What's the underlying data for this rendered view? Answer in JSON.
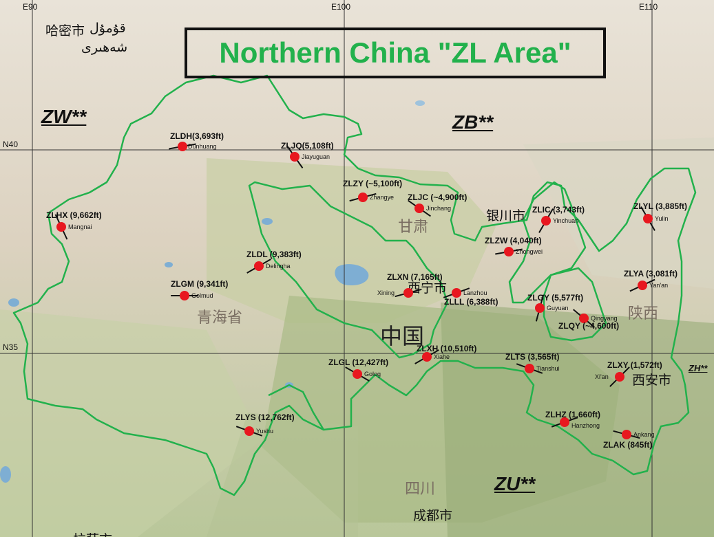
{
  "title": "Northern China \"ZL Area\"",
  "grid": {
    "lon": [
      "E90",
      "E100",
      "E110"
    ],
    "lat": [
      "N40",
      "N35"
    ]
  },
  "zones": [
    "ZW**",
    "ZB**",
    "ZU**",
    "ZH**"
  ],
  "places": {
    "hami": "哈密市",
    "hami_uyghur": "قۇمۇل",
    "hami_uyghur2": "شەھىرى",
    "gansu": "甘肃",
    "yinchuan": "银川市",
    "xining": "西宁市",
    "qinghai": "青海省",
    "china": "中国",
    "shaanxi": "陕西",
    "xian": "西安市",
    "sichuan": "四川",
    "chengdu": "成都市",
    "bottom_partial": "拉萨市"
  },
  "airports": [
    {
      "code": "ZLDH(3,693ft)",
      "city": "Dunhuang"
    },
    {
      "code": "ZLJQ(5,108ft)",
      "city": "Jiayuguan"
    },
    {
      "code": "ZLZY (~5,100ft)",
      "city": "Zhangye"
    },
    {
      "code": "ZLJC (~4,900ft)",
      "city": "Jinchang"
    },
    {
      "code": "ZLIC (3,743ft)",
      "city": "Yinchuan"
    },
    {
      "code": "ZLYL (3,885ft)",
      "city": "Yulin"
    },
    {
      "code": "ZLHX (9,662ft)",
      "city": "Mangnai"
    },
    {
      "code": "ZLZW (4,040ft)",
      "city": "Zhongwei"
    },
    {
      "code": "ZLDL (9,383ft)",
      "city": "Delingha"
    },
    {
      "code": "ZLXN (7,165ft)",
      "city": "Xining"
    },
    {
      "code": "ZLLL (6,388ft)",
      "city": "Lanzhou"
    },
    {
      "code": "ZLYA (3,081ft)",
      "city": "Yan'an"
    },
    {
      "code": "ZLGM (9,341ft)",
      "city": "Golmud"
    },
    {
      "code": "ZLGY (5,577ft)",
      "city": "Guyuan"
    },
    {
      "code": "ZLQY (~4,600ft)",
      "city": "Qingyang"
    },
    {
      "code": "ZLXH (10,510ft)",
      "city": "Xiahe"
    },
    {
      "code": "ZLTS (3,565ft)",
      "city": "Tianshui"
    },
    {
      "code": "ZLGL (12,427ft)",
      "city": "Golog"
    },
    {
      "code": "ZLXY (1,572ft)",
      "city": "Xi'an"
    },
    {
      "code": "ZLYS (12,762ft)",
      "city": "Yushu"
    },
    {
      "code": "ZLHZ (1,660ft)",
      "city": "Hanzhong"
    },
    {
      "code": "ZLAK (845ft)",
      "city": "Ankang"
    }
  ],
  "colors": {
    "boundary": "#22b14c",
    "marker": "#e8171f",
    "title": "#22b14c"
  }
}
